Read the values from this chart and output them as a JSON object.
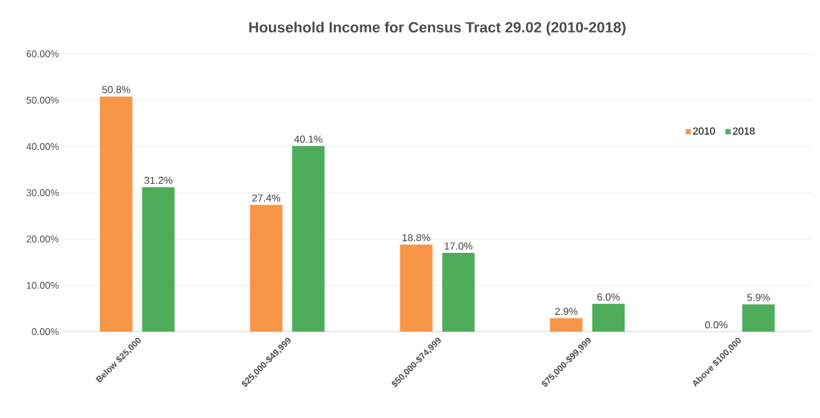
{
  "chart_data": {
    "type": "bar",
    "title": "Household Income for Census Tract 29.02 (2010-2018)",
    "categories": [
      "Below $25,000",
      "$25,000-$49,999",
      "$50,000-$74,999",
      "$75,000-$99,999",
      "Above $100,000"
    ],
    "series": [
      {
        "name": "2010",
        "color": "#f79646",
        "values": [
          50.8,
          27.4,
          18.8,
          2.9,
          0.0
        ],
        "value_labels": [
          "50.8%",
          "27.4%",
          "18.8%",
          "2.9%",
          "0.0%"
        ]
      },
      {
        "name": "2018",
        "color": "#4ead5b",
        "values": [
          31.2,
          40.1,
          17.0,
          6.0,
          5.9
        ],
        "value_labels": [
          "31.2%",
          "40.1%",
          "17.0%",
          "6.0%",
          "5.9%"
        ]
      }
    ],
    "ylim": [
      0,
      60
    ],
    "yticks": [
      {
        "value": 0,
        "label": "0.00%"
      },
      {
        "value": 10,
        "label": "10.00%"
      },
      {
        "value": 20,
        "label": "20.00%"
      },
      {
        "value": 30,
        "label": "30.00%"
      },
      {
        "value": 40,
        "label": "40.00%"
      },
      {
        "value": 50,
        "label": "50.00%"
      },
      {
        "value": 60,
        "label": "60.00%"
      }
    ],
    "grid": "y",
    "legend": "right"
  }
}
